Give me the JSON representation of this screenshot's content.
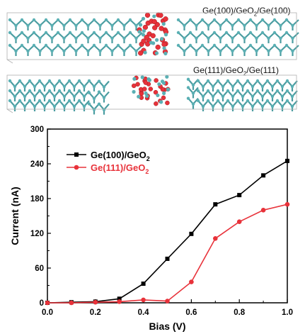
{
  "structures": [
    {
      "formula_parts": [
        "Ge(100)/GeO",
        "2",
        "/Ge(100)"
      ]
    },
    {
      "formula_parts": [
        "Ge(111)/GeO",
        "2",
        "/Ge(111)"
      ]
    }
  ],
  "colors": {
    "ge_atom": "#5ab0b4",
    "ge_bond": "#4a9ca0",
    "o_atom": "#e8323a",
    "cell_box": "#b0b0b0",
    "series_black": "#000000",
    "series_red": "#e8323a"
  },
  "chart_data": {
    "type": "line",
    "title": "",
    "xlabel": "Bias (V)",
    "ylabel": "Current (nA)",
    "xlim": [
      0.0,
      1.0
    ],
    "ylim": [
      0,
      300
    ],
    "xticks": [
      "0.0",
      "0.2",
      "0.4",
      "0.6",
      "0.8",
      "1.0"
    ],
    "yticks": [
      "0",
      "60",
      "120",
      "180",
      "240",
      "300"
    ],
    "legend_position": "top-left",
    "grid": false,
    "series": [
      {
        "name_parts": [
          "Ge(100)/GeO",
          "2"
        ],
        "color": "#000000",
        "marker": "square",
        "x": [
          0.0,
          0.1,
          0.2,
          0.3,
          0.4,
          0.5,
          0.6,
          0.7,
          0.8,
          0.9,
          1.0
        ],
        "y": [
          0,
          1,
          2,
          7,
          33,
          76,
          119,
          170,
          186,
          220,
          245
        ]
      },
      {
        "name_parts": [
          "Ge(111)/GeO",
          "2"
        ],
        "color": "#e8323a",
        "marker": "circle",
        "x": [
          0.0,
          0.1,
          0.2,
          0.3,
          0.4,
          0.5,
          0.6,
          0.7,
          0.8,
          0.9,
          1.0
        ],
        "y": [
          0,
          0,
          1,
          2,
          5,
          3,
          36,
          111,
          140,
          160,
          170
        ]
      }
    ]
  }
}
